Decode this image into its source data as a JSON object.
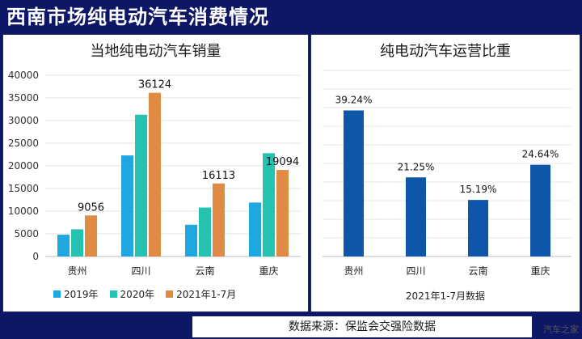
{
  "page_title": "西南市场纯电动汽车消费情况",
  "source": "数据来源：保监会交强险数据",
  "watermark": "汽车之家",
  "colors": {
    "background": "#0d1766",
    "s2019": "#1ea7e1",
    "s2020": "#25c2b1",
    "s2021": "#df8b45",
    "share": "#0e56a8"
  },
  "chart_data": [
    {
      "type": "bar",
      "title": "当地纯电动汽车销量",
      "categories": [
        "贵州",
        "四川",
        "云南",
        "重庆"
      ],
      "series": [
        {
          "name": "2019年",
          "values": [
            4800,
            22300,
            7000,
            11900
          ]
        },
        {
          "name": "2020年",
          "values": [
            6000,
            31300,
            10800,
            22800
          ]
        },
        {
          "name": "2021年1-7月",
          "values": [
            9056,
            36124,
            16113,
            19094
          ]
        }
      ],
      "data_labels": [
        "9056",
        "36124",
        "16113",
        "19094"
      ],
      "yticks": [
        "0",
        "5000",
        "10000",
        "15000",
        "20000",
        "25000",
        "30000",
        "35000",
        "40000"
      ],
      "ylim": [
        0,
        40000
      ],
      "legend_position": "bottom",
      "grid": true
    },
    {
      "type": "bar",
      "title": "纯电动汽车运营比重",
      "categories": [
        "贵州",
        "四川",
        "云南",
        "重庆"
      ],
      "values": [
        39.24,
        21.25,
        15.19,
        24.64
      ],
      "data_labels": [
        "39.24%",
        "21.25%",
        "15.19%",
        "24.64%"
      ],
      "xlabel": "2021年1-7月数据",
      "ylim": [
        0,
        50
      ],
      "grid": true
    }
  ]
}
